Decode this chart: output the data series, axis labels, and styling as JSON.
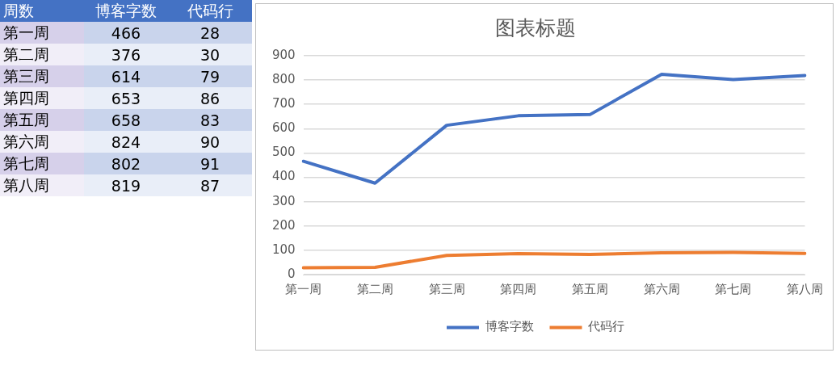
{
  "chart_data": [
    {
      "type": "heatmap",
      "annotations": [
        "周数"
      ],
      "categories": [
        "博客字数",
        "代码行"
      ],
      "y_categories": [
        "第一周",
        "第二周",
        "第三周",
        "第四周",
        "第五周",
        "第六周",
        "第七周",
        "第八周"
      ],
      "cells": [
        [
          466,
          28
        ],
        [
          376,
          30
        ],
        [
          614,
          79
        ],
        [
          653,
          86
        ],
        [
          658,
          83
        ],
        [
          824,
          90
        ],
        [
          802,
          91
        ],
        [
          819,
          87
        ]
      ],
      "data_labels": true
    },
    {
      "type": "line",
      "title": "图表标题",
      "categories": [
        "第一周",
        "第二周",
        "第三周",
        "第四周",
        "第五周",
        "第六周",
        "第七周",
        "第八周"
      ],
      "series": [
        {
          "name": "博客字数",
          "color": "#4472c4",
          "values": [
            466,
            376,
            614,
            653,
            658,
            824,
            802,
            819
          ]
        },
        {
          "name": "代码行",
          "color": "#ed7d31",
          "values": [
            28,
            30,
            79,
            86,
            83,
            90,
            91,
            87
          ]
        }
      ],
      "ylim": [
        0,
        900
      ],
      "yticks": [
        0,
        100,
        200,
        300,
        400,
        500,
        600,
        700,
        800,
        900
      ],
      "grid": "y",
      "legend": "bottom",
      "marker": "none",
      "line_style": "solid"
    }
  ]
}
